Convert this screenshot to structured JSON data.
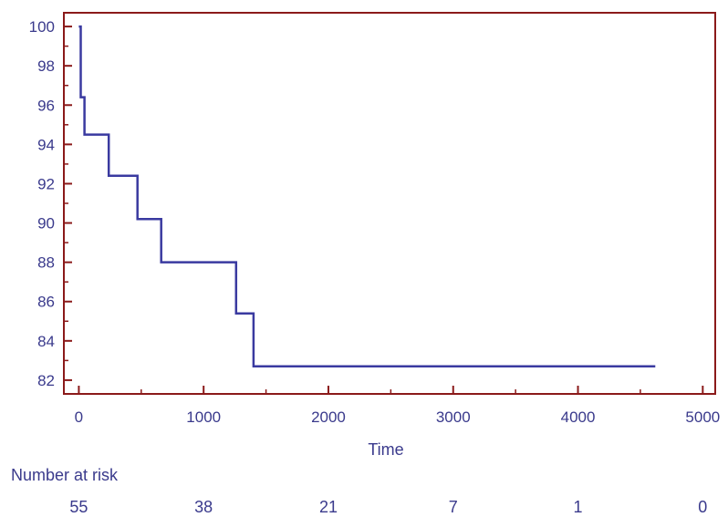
{
  "chart_data": {
    "type": "line",
    "title": "",
    "xlabel": "Time",
    "ylabel": "",
    "xlim": [
      -120,
      5100
    ],
    "ylim": [
      81.3,
      100.7
    ],
    "x_ticks": [
      0,
      1000,
      2000,
      3000,
      4000,
      5000
    ],
    "y_ticks": [
      82,
      84,
      86,
      88,
      90,
      92,
      94,
      96,
      98,
      100
    ],
    "grid": false,
    "series": [
      {
        "step": true,
        "x": [
          0,
          15,
          15,
          45,
          45,
          240,
          240,
          470,
          470,
          660,
          660,
          1260,
          1260,
          1400,
          1400,
          4620
        ],
        "y": [
          100,
          100,
          96.4,
          96.4,
          94.5,
          94.5,
          92.4,
          92.4,
          90.2,
          90.2,
          88.0,
          88.0,
          85.4,
          85.4,
          82.7,
          82.7
        ]
      }
    ],
    "colors": {
      "line": "#3a3aa0",
      "frame": "#8b1a1a",
      "text": "#3a3a8c"
    }
  },
  "risk_table": {
    "title": "Number at risk",
    "values": [
      "55",
      "38",
      "21",
      "7",
      "1",
      "0"
    ]
  }
}
